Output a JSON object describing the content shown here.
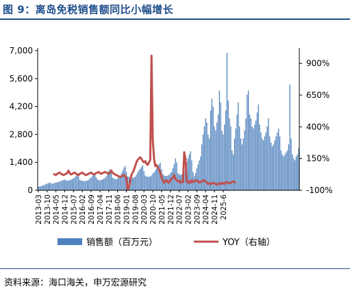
{
  "figure": {
    "title": "图 9：离岛免税销售额同比小幅增长",
    "source": "资料来源：海口海关，申万宏源研究",
    "bar_color": "#4f81bd",
    "line_color": "#c0504d",
    "title_color": "#1f4e8c"
  },
  "chart_data": {
    "type": "bar",
    "legend_position": "bottom",
    "grid": false,
    "x_tick_labels": [
      "2013-03",
      "2013-10",
      "2014-05",
      "2014-12",
      "2015-07",
      "2016-02",
      "2016-09",
      "2017-04",
      "2017-11",
      "2018-06",
      "2019-01",
      "2019-08",
      "2020-03",
      "2020-10",
      "2021-05",
      "2021-12",
      "2022-07",
      "2023-02",
      "2023-09",
      "2024-04",
      "2024-11",
      "2025-6"
    ],
    "y_left": {
      "min": 0,
      "max": 7000,
      "ticks": [
        "0",
        "1,400",
        "2,800",
        "4,200",
        "5,600",
        "7,000"
      ]
    },
    "y_right": {
      "min": -100,
      "max": 1000,
      "ticks": [
        "-100%",
        "150%",
        "400%",
        "650%",
        "900%"
      ]
    },
    "series": [
      {
        "name": "销售额（百万元）",
        "type": "bar",
        "axis": "left",
        "start": "2013-03",
        "values": [
          180,
          190,
          200,
          230,
          250,
          280,
          310,
          330,
          360,
          390,
          360,
          330,
          350,
          370,
          380,
          400,
          420,
          440,
          470,
          490,
          520,
          540,
          500,
          480,
          490,
          510,
          530,
          560,
          600,
          650,
          720,
          860,
          700,
          520,
          500,
          480,
          470,
          460,
          470,
          490,
          520,
          600,
          640,
          720,
          800,
          880,
          650,
          540,
          520,
          500,
          520,
          540,
          580,
          620,
          700,
          820,
          960,
          1060,
          900,
          640,
          600,
          560,
          560,
          590,
          640,
          720,
          840,
          980,
          1120,
          1220,
          920,
          700,
          680,
          660,
          640,
          630,
          640,
          680,
          780,
          900,
          1000,
          1080,
          1160,
          1260,
          960,
          740,
          700,
          680,
          680,
          700,
          740,
          840,
          900,
          1000,
          1100,
          1200,
          1300,
          1380,
          1040,
          820,
          740,
          720,
          720,
          740,
          780,
          860,
          920,
          1100,
          1300,
          1600,
          1400,
          860,
          820,
          760,
          800,
          900,
          1000,
          1200,
          1400,
          1600,
          1800,
          1950,
          1500,
          920,
          700,
          850,
          1100,
          1300,
          1500,
          1700,
          2300,
          2800,
          3200,
          3600,
          3400,
          2800,
          2600,
          4000,
          4600,
          4200,
          3200,
          3000,
          3400,
          3800,
          5000,
          4400,
          3000,
          2800,
          3300,
          4000,
          6900,
          4500,
          3600,
          3200,
          2000,
          1800,
          2600,
          3100,
          3800,
          4400,
          3200,
          2600,
          2300,
          2600,
          3000,
          3600,
          4800,
          5000,
          3800,
          3600,
          3200,
          3100,
          3300,
          3500,
          3900,
          4300,
          3300,
          2900,
          2600,
          2500,
          2700,
          2900,
          3200,
          3600,
          2700,
          2400,
          2200,
          2300,
          2500,
          2700,
          2900,
          3100,
          2700,
          2000,
          1800,
          1700,
          1800,
          1900,
          2000,
          2300,
          5300,
          2600,
          1800,
          1600,
          1500,
          1700,
          1800,
          2100
        ],
        "source_max_note": ""
      },
      {
        "name": "YOY（右轴）",
        "type": "line",
        "axis": "right",
        "start": "2014-03",
        "values": [
          30,
          25,
          20,
          30,
          35,
          40,
          30,
          25,
          20,
          25,
          30,
          35,
          55,
          35,
          25,
          30,
          35,
          40,
          30,
          25,
          20,
          30,
          35,
          40,
          30,
          25,
          20,
          25,
          30,
          35,
          40,
          30,
          25,
          30,
          35,
          40,
          45,
          35,
          30,
          35,
          40,
          45,
          40,
          35,
          30,
          40,
          55,
          40,
          30,
          25,
          20,
          15,
          10,
          5,
          10,
          15,
          20,
          10,
          0,
          -95,
          -80,
          -30,
          20,
          40,
          60,
          90,
          120,
          140,
          150,
          160,
          150,
          130,
          120,
          130,
          110,
          100,
          120,
          140,
          960,
          300,
          150,
          90,
          100,
          80,
          60,
          40,
          0,
          -20,
          -40,
          -30,
          -20,
          -35,
          -40,
          -20,
          -10,
          0,
          20,
          -10,
          -20,
          -30,
          -25,
          -40,
          -30,
          -35,
          200,
          150,
          -30,
          -40,
          -30,
          -40,
          -20,
          -35,
          -30,
          -25,
          -20,
          -30,
          -40,
          -35,
          -30,
          -25,
          -20,
          -30,
          -40,
          -50,
          -45,
          -50,
          -45,
          -40,
          -45,
          -50,
          -55,
          -50,
          -45,
          -50,
          -40,
          -45,
          -50,
          -40,
          -35,
          -40,
          -45,
          -40,
          -35,
          -30,
          -35,
          -40
        ]
      }
    ]
  }
}
